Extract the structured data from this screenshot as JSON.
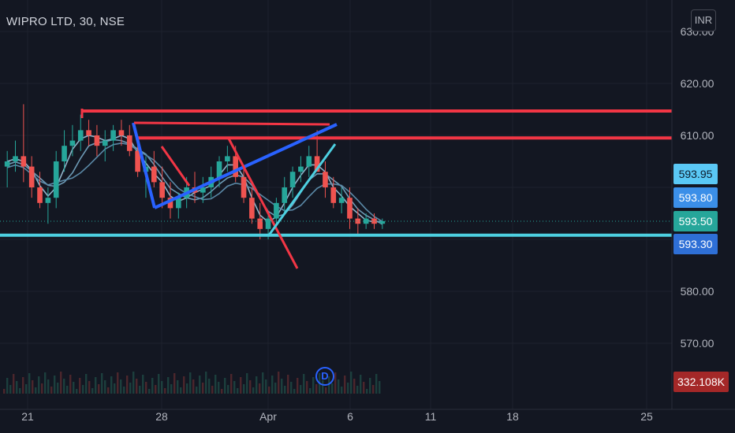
{
  "header": {
    "symbol_title": "WIPRO LTD, 30, NSE",
    "currency": "INR"
  },
  "events": {
    "dividend_marker": "D"
  },
  "chart_data": {
    "type": "candlestick",
    "title": "WIPRO LTD, 30, NSE",
    "ylim": [
      564.5,
      636
    ],
    "y_ticks": [
      {
        "value": 620,
        "label": "620.00"
      },
      {
        "value": 610,
        "label": "610.00"
      },
      {
        "value": 580,
        "label": "580.00"
      },
      {
        "value": 570,
        "label": "570.00"
      }
    ],
    "y_tick_top_partial": "630.00",
    "x_ticks": [
      "21",
      "28",
      "Apr",
      "6",
      "11",
      "18",
      "25"
    ],
    "price_tags": [
      {
        "label": "593.95",
        "value": 593.95,
        "bg": "#5ac8f5",
        "fg": "#0b1a2a"
      },
      {
        "label": "593.80",
        "value": 593.8,
        "bg": "#3b8fe8",
        "fg": "#ffffff"
      },
      {
        "label": "593.50",
        "value": 593.5,
        "bg": "#26a69a",
        "fg": "#ffffff"
      },
      {
        "label": "593.30",
        "value": 593.3,
        "bg": "#2e6fd6",
        "fg": "#ffffff"
      }
    ],
    "volume_tag": {
      "label": "332.108K",
      "bg": "#a42828",
      "fg": "#ffffff"
    },
    "last_price": 593.5,
    "horizontal_levels": [
      {
        "value": 614.7,
        "color": "#f23645"
      },
      {
        "value": 609.5,
        "color": "#f23645"
      },
      {
        "value": 590.8,
        "color": "#4dd0e1"
      }
    ],
    "candles_approx": [
      [
        604,
        607,
        600,
        605
      ],
      [
        605,
        609,
        603,
        606
      ],
      [
        606,
        616,
        601,
        604
      ],
      [
        604,
        606,
        598,
        600
      ],
      [
        600,
        603,
        596,
        597
      ],
      [
        597,
        600,
        593,
        598
      ],
      [
        598,
        607,
        596,
        605
      ],
      [
        605,
        611,
        603,
        608
      ],
      [
        608,
        612,
        606,
        609
      ],
      [
        609,
        614,
        607,
        611
      ],
      [
        611,
        613,
        608,
        610
      ],
      [
        610,
        612,
        606,
        608
      ],
      [
        608,
        611,
        605,
        609
      ],
      [
        609,
        612,
        607,
        611
      ],
      [
        611,
        613,
        608,
        610
      ],
      [
        610,
        612,
        606,
        607
      ],
      [
        607,
        609,
        602,
        603
      ],
      [
        603,
        606,
        598,
        604
      ],
      [
        604,
        607,
        600,
        601
      ],
      [
        601,
        604,
        596,
        598
      ],
      [
        598,
        601,
        594,
        596
      ],
      [
        596,
        599,
        594,
        598
      ],
      [
        598,
        602,
        596,
        600
      ],
      [
        600,
        603,
        597,
        599
      ],
      [
        599,
        602,
        597,
        600
      ],
      [
        600,
        604,
        598,
        602
      ],
      [
        602,
        606,
        600,
        605
      ],
      [
        605,
        608,
        603,
        606
      ],
      [
        606,
        608,
        601,
        602
      ],
      [
        602,
        604,
        597,
        598
      ],
      [
        598,
        600,
        593,
        594
      ],
      [
        594,
        597,
        590,
        592
      ],
      [
        592,
        595,
        590,
        594
      ],
      [
        594,
        598,
        592,
        597
      ],
      [
        597,
        602,
        595,
        600
      ],
      [
        600,
        604,
        598,
        603
      ],
      [
        603,
        606,
        601,
        604
      ],
      [
        604,
        608,
        602,
        606
      ],
      [
        606,
        611,
        604,
        603
      ],
      [
        603,
        605,
        598,
        600
      ],
      [
        600,
        602,
        596,
        597
      ],
      [
        597,
        600,
        595,
        598
      ],
      [
        598,
        600,
        592,
        594
      ],
      [
        594,
        596,
        591,
        593
      ],
      [
        593,
        595,
        592,
        594
      ],
      [
        594,
        595,
        592,
        593
      ],
      [
        593,
        594,
        592,
        593.5
      ]
    ]
  }
}
